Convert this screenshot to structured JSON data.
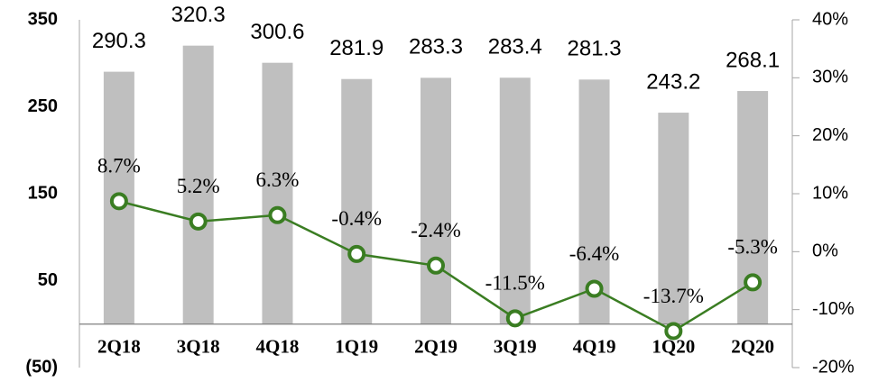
{
  "chart_data": {
    "type": "bar",
    "categories": [
      "2Q18",
      "3Q18",
      "4Q18",
      "1Q19",
      "2Q19",
      "3Q19",
      "4Q19",
      "1Q20",
      "2Q20"
    ],
    "series": [
      {
        "type": "bar",
        "color": "#bfbfbf",
        "values": [
          290.3,
          320.3,
          300.6,
          281.9,
          283.3,
          283.4,
          281.3,
          243.2,
          268.1
        ]
      },
      {
        "type": "line",
        "axis": "y2",
        "color": "#3a7d22",
        "values": [
          8.7,
          5.2,
          6.3,
          -0.4,
          -2.4,
          -11.5,
          -6.4,
          -13.7,
          -5.3
        ],
        "value_labels": [
          "8.7%",
          "5.2%",
          "6.3%",
          "-0.4%",
          "-2.4%",
          "-11.5%",
          "-6.4%",
          "-13.7%",
          "-5.3%"
        ]
      }
    ],
    "ylim": [
      -50,
      350
    ],
    "yticks": [
      {
        "value": -50,
        "label": "(50)"
      },
      50,
      150,
      250,
      350
    ],
    "y2lim": [
      -20,
      40
    ],
    "y2ticks": [
      {
        "value": -20,
        "label": "-20%"
      },
      {
        "value": -10,
        "label": "-10%"
      },
      {
        "value": 0,
        "label": "0%"
      },
      {
        "value": 10,
        "label": "10%"
      },
      {
        "value": 20,
        "label": "20%"
      },
      {
        "value": 30,
        "label": "30%"
      },
      {
        "value": 40,
        "label": "40%"
      }
    ]
  }
}
